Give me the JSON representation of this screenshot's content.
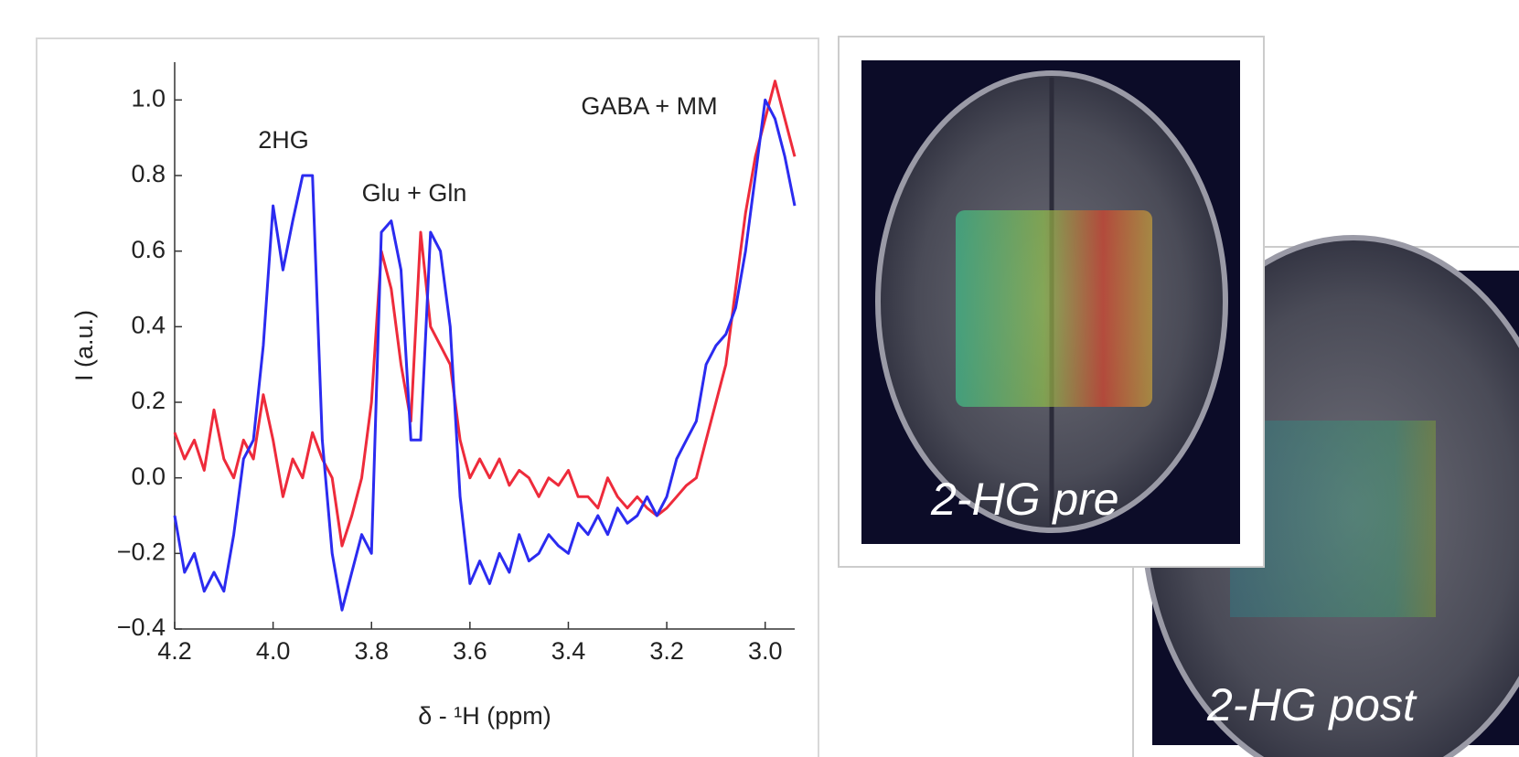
{
  "chart_data": {
    "type": "line",
    "xlabel": "δ - ¹H (ppm)",
    "ylabel": "I (a.u.)",
    "annotations": [
      "2HG",
      "Glu + Gln",
      "GABA + MM"
    ],
    "x": [
      4.2,
      4.18,
      4.16,
      4.14,
      4.12,
      4.1,
      4.08,
      4.06,
      4.04,
      4.02,
      4.0,
      3.98,
      3.96,
      3.94,
      3.92,
      3.9,
      3.88,
      3.86,
      3.84,
      3.82,
      3.8,
      3.78,
      3.76,
      3.74,
      3.72,
      3.7,
      3.68,
      3.66,
      3.64,
      3.62,
      3.6,
      3.58,
      3.56,
      3.54,
      3.52,
      3.5,
      3.48,
      3.46,
      3.44,
      3.42,
      3.4,
      3.38,
      3.36,
      3.34,
      3.32,
      3.3,
      3.28,
      3.26,
      3.24,
      3.22,
      3.2,
      3.18,
      3.16,
      3.14,
      3.12,
      3.1,
      3.08,
      3.06,
      3.04,
      3.02,
      3.0,
      2.98,
      2.96,
      2.94
    ],
    "series": [
      {
        "color": "#2b2bf0",
        "values": [
          -0.1,
          -0.25,
          -0.2,
          -0.3,
          -0.25,
          -0.3,
          -0.15,
          0.05,
          0.1,
          0.35,
          0.72,
          0.55,
          0.68,
          0.8,
          0.8,
          0.1,
          -0.2,
          -0.35,
          -0.25,
          -0.15,
          -0.2,
          0.65,
          0.68,
          0.55,
          0.1,
          0.1,
          0.65,
          0.6,
          0.4,
          -0.05,
          -0.28,
          -0.22,
          -0.28,
          -0.2,
          -0.25,
          -0.15,
          -0.22,
          -0.2,
          -0.15,
          -0.18,
          -0.2,
          -0.12,
          -0.15,
          -0.1,
          -0.15,
          -0.08,
          -0.12,
          -0.1,
          -0.05,
          -0.1,
          -0.05,
          0.05,
          0.1,
          0.15,
          0.3,
          0.35,
          0.38,
          0.45,
          0.6,
          0.8,
          1.0,
          0.95,
          0.85,
          0.72
        ]
      },
      {
        "color": "#ee2b3b",
        "values": [
          0.12,
          0.05,
          0.1,
          0.02,
          0.18,
          0.05,
          0.0,
          0.1,
          0.05,
          0.22,
          0.1,
          -0.05,
          0.05,
          0.0,
          0.12,
          0.05,
          0.0,
          -0.18,
          -0.1,
          0.0,
          0.2,
          0.6,
          0.5,
          0.3,
          0.15,
          0.65,
          0.4,
          0.35,
          0.3,
          0.1,
          0.0,
          0.05,
          0.0,
          0.05,
          -0.02,
          0.02,
          0.0,
          -0.05,
          0.0,
          -0.02,
          0.02,
          -0.05,
          -0.05,
          -0.08,
          0.0,
          -0.05,
          -0.08,
          -0.05,
          -0.08,
          -0.1,
          -0.08,
          -0.05,
          -0.02,
          0.0,
          0.1,
          0.2,
          0.3,
          0.5,
          0.7,
          0.85,
          0.95,
          1.05,
          0.95,
          0.85
        ]
      }
    ],
    "xlim": [
      4.2,
      2.94
    ],
    "ylim": [
      -0.4,
      1.1
    ],
    "xticks": [
      4.2,
      {
        "value": 4,
        "label": "4.0"
      },
      3.8,
      3.6,
      3.4,
      3.2,
      {
        "value": 3,
        "label": "3.0"
      }
    ],
    "yticks": [
      {
        "value": -0.4,
        "label": "−0.4"
      },
      {
        "value": -0.2,
        "label": "−0.2"
      },
      {
        "value": 0,
        "label": "0.0"
      },
      0.2,
      0.4,
      0.6,
      0.8,
      {
        "value": 1,
        "label": "1.0"
      }
    ]
  },
  "images": {
    "labels": [
      "2-HG pre",
      "2-HG post"
    ]
  }
}
